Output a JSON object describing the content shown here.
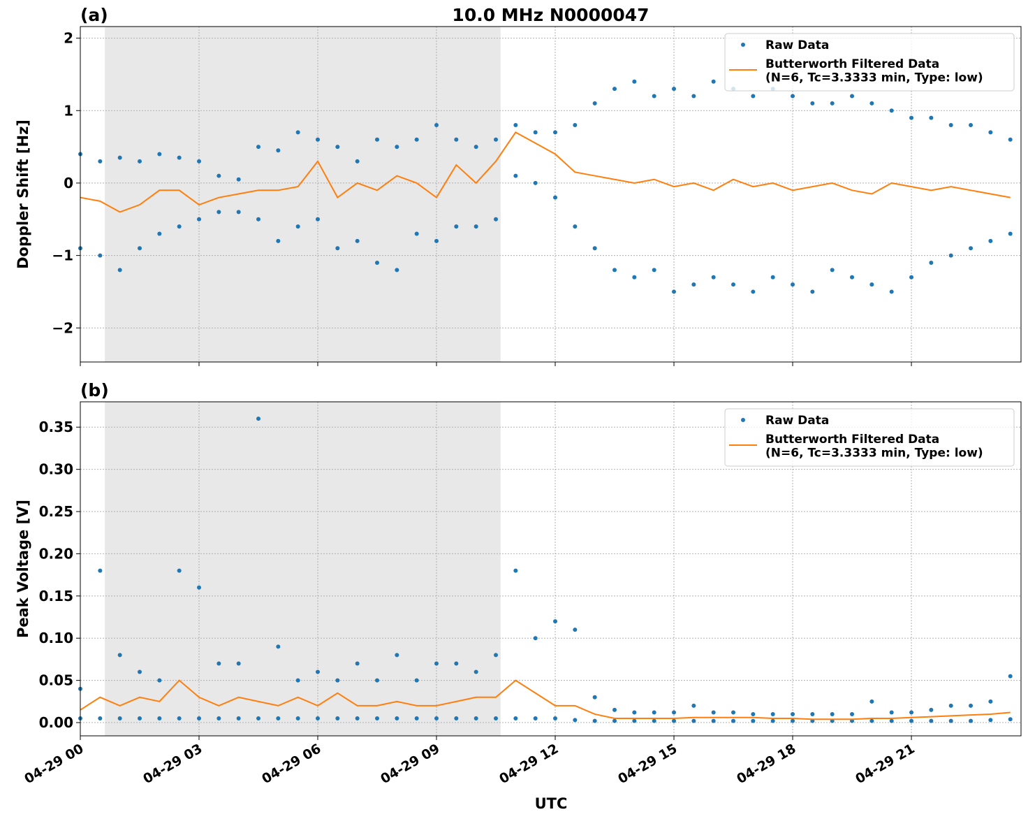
{
  "chart_data": [
    {
      "type": "line",
      "title": "10.0 MHz N0000047",
      "panel_label": "(a)",
      "ylabel": "Doppler Shift [Hz]",
      "xlim": [
        0,
        23.77
      ],
      "ylim": [
        -2.47,
        2.16
      ],
      "xticks": [
        0,
        3,
        6,
        9,
        12,
        15,
        18,
        21
      ],
      "yticks": [
        {
          "value": -2,
          "label": "−2"
        },
        {
          "value": -1,
          "label": "−1"
        },
        0,
        1,
        2
      ],
      "grid": true,
      "legend": "upper right",
      "shade": [
        0.62,
        10.62
      ],
      "series": [
        {
          "name": "Raw Data",
          "color": "#1f77b4",
          "marker": "dot",
          "x": [
            0,
            0,
            0.5,
            0.5,
            1,
            1,
            1.5,
            1.5,
            2,
            2,
            2.5,
            2.5,
            3,
            3,
            3.5,
            3.5,
            4,
            4,
            4.5,
            4.5,
            5,
            5,
            5.5,
            5.5,
            6,
            6,
            6.5,
            6.5,
            7,
            7,
            7.5,
            7.5,
            8,
            8,
            8.5,
            8.5,
            9,
            9,
            9.5,
            9.5,
            10,
            10,
            10.5,
            10.5,
            11,
            11,
            11.5,
            11.5,
            12,
            12,
            12.5,
            12.5,
            13,
            13,
            13.5,
            13.5,
            14,
            14,
            14.5,
            14.5,
            15,
            15,
            15.5,
            15.5,
            16,
            16,
            16.5,
            16.5,
            17,
            17,
            17.5,
            17.5,
            18,
            18,
            18.5,
            18.5,
            19,
            19,
            19.5,
            19.5,
            20,
            20,
            20.5,
            20.5,
            21,
            21,
            21.5,
            21.5,
            22,
            22,
            22.5,
            22.5,
            23,
            23,
            23.5,
            23.5
          ],
          "values": [
            0.4,
            -0.9,
            0.3,
            -1.0,
            0.35,
            -1.2,
            0.3,
            -0.9,
            0.4,
            -0.7,
            0.35,
            -0.6,
            0.3,
            -0.5,
            0.1,
            -0.4,
            0.05,
            -0.4,
            0.5,
            -0.5,
            0.45,
            -0.8,
            0.7,
            -0.6,
            0.6,
            -0.5,
            0.5,
            -0.9,
            0.3,
            -0.8,
            0.6,
            -1.1,
            0.5,
            -1.2,
            0.6,
            -0.7,
            0.8,
            -0.8,
            0.6,
            -0.6,
            0.5,
            -0.6,
            0.6,
            -0.5,
            0.8,
            0.1,
            0.7,
            0.0,
            0.7,
            -0.2,
            0.8,
            -0.6,
            1.1,
            -0.9,
            1.3,
            -1.2,
            1.4,
            -1.3,
            1.2,
            -1.2,
            1.3,
            -1.5,
            1.2,
            -1.4,
            1.4,
            -1.3,
            1.3,
            -1.4,
            1.2,
            -1.5,
            1.3,
            -1.3,
            1.2,
            -1.4,
            1.1,
            -1.5,
            1.1,
            -1.2,
            1.2,
            -1.3,
            1.1,
            -1.4,
            1.0,
            -1.5,
            0.9,
            -1.3,
            0.9,
            -1.1,
            0.8,
            -1.0,
            0.8,
            -0.9,
            0.7,
            -0.8,
            0.6,
            -0.7
          ]
        },
        {
          "name": "Butterworth Filtered Data\n(N=6, Tc=3.3333 min, Type: low)",
          "color": "#ff7f0e",
          "marker": "line",
          "x": [
            0,
            0.5,
            1,
            1.5,
            2,
            2.5,
            3,
            3.5,
            4,
            4.5,
            5,
            5.5,
            6,
            6.5,
            7,
            7.5,
            8,
            8.5,
            9,
            9.5,
            10,
            10.5,
            11,
            11.5,
            12,
            12.5,
            13,
            13.5,
            14,
            14.5,
            15,
            15.5,
            16,
            16.5,
            17,
            17.5,
            18,
            18.5,
            19,
            19.5,
            20,
            20.5,
            21,
            21.5,
            22,
            22.5,
            23,
            23.5
          ],
          "values": [
            -0.2,
            -0.25,
            -0.4,
            -0.3,
            -0.1,
            -0.1,
            -0.3,
            -0.2,
            -0.15,
            -0.1,
            -0.1,
            -0.05,
            0.3,
            -0.2,
            0.0,
            -0.1,
            0.1,
            0.0,
            -0.2,
            0.25,
            0.0,
            0.3,
            0.7,
            0.55,
            0.4,
            0.15,
            0.1,
            0.05,
            0.0,
            0.05,
            -0.05,
            0.0,
            -0.1,
            0.05,
            -0.05,
            0.0,
            -0.1,
            -0.05,
            0.0,
            -0.1,
            -0.15,
            0.0,
            -0.05,
            -0.1,
            -0.05,
            -0.1,
            -0.15,
            -0.2
          ]
        }
      ]
    },
    {
      "type": "line",
      "panel_label": "(b)",
      "ylabel": "Peak Voltage [V]",
      "xlabel": "UTC",
      "xlim": [
        0,
        23.77
      ],
      "ylim": [
        -0.0157,
        0.38
      ],
      "xticks": [
        {
          "value": 0,
          "label": "04-29 00"
        },
        {
          "value": 3,
          "label": "04-29 03"
        },
        {
          "value": 6,
          "label": "04-29 06"
        },
        {
          "value": 9,
          "label": "04-29 09"
        },
        {
          "value": 12,
          "label": "04-29 12"
        },
        {
          "value": 15,
          "label": "04-29 15"
        },
        {
          "value": 18,
          "label": "04-29 18"
        },
        {
          "value": 21,
          "label": "04-29 21"
        }
      ],
      "yticks": [
        {
          "value": 0,
          "label": "0.00"
        },
        0.05,
        {
          "value": 0.1,
          "label": "0.10"
        },
        0.15,
        {
          "value": 0.2,
          "label": "0.20"
        },
        0.25,
        {
          "value": 0.3,
          "label": "0.30"
        },
        0.35
      ],
      "grid": true,
      "legend": "upper right",
      "shade": [
        0.62,
        10.62
      ],
      "series": [
        {
          "name": "Raw Data",
          "color": "#1f77b4",
          "marker": "dot",
          "x": [
            0,
            0,
            0.5,
            0.5,
            1,
            1,
            1.5,
            1.5,
            2,
            2,
            2.5,
            2.5,
            3,
            3,
            3.5,
            3.5,
            4,
            4,
            4.5,
            4.5,
            5,
            5,
            5.5,
            5.5,
            6,
            6,
            6.5,
            6.5,
            7,
            7,
            7.5,
            7.5,
            8,
            8,
            8.5,
            8.5,
            9,
            9,
            9.5,
            9.5,
            10,
            10,
            10.5,
            10.5,
            11,
            11,
            11.5,
            11.5,
            12,
            12,
            12.5,
            12.5,
            13,
            13,
            13.5,
            13.5,
            14,
            14,
            14.5,
            14.5,
            15,
            15,
            15.5,
            15.5,
            16,
            16,
            16.5,
            16.5,
            17,
            17,
            17.5,
            17.5,
            18,
            18,
            18.5,
            18.5,
            19,
            19,
            19.5,
            19.5,
            20,
            20,
            20.5,
            20.5,
            21,
            21,
            21.5,
            21.5,
            22,
            22,
            22.5,
            22.5,
            23,
            23,
            23.5,
            23.5
          ],
          "values": [
            0.04,
            0.005,
            0.18,
            0.005,
            0.08,
            0.005,
            0.06,
            0.005,
            0.05,
            0.005,
            0.18,
            0.005,
            0.16,
            0.005,
            0.07,
            0.005,
            0.07,
            0.005,
            0.36,
            0.005,
            0.09,
            0.005,
            0.05,
            0.005,
            0.06,
            0.005,
            0.05,
            0.005,
            0.07,
            0.005,
            0.05,
            0.005,
            0.08,
            0.005,
            0.05,
            0.005,
            0.07,
            0.005,
            0.07,
            0.005,
            0.06,
            0.005,
            0.08,
            0.005,
            0.18,
            0.005,
            0.1,
            0.005,
            0.12,
            0.005,
            0.11,
            0.003,
            0.03,
            0.002,
            0.015,
            0.002,
            0.012,
            0.002,
            0.012,
            0.002,
            0.012,
            0.002,
            0.02,
            0.002,
            0.012,
            0.002,
            0.012,
            0.002,
            0.01,
            0.002,
            0.01,
            0.002,
            0.01,
            0.002,
            0.01,
            0.002,
            0.01,
            0.002,
            0.01,
            0.002,
            0.025,
            0.002,
            0.012,
            0.002,
            0.012,
            0.002,
            0.015,
            0.002,
            0.02,
            0.002,
            0.02,
            0.002,
            0.025,
            0.003,
            0.055,
            0.004
          ]
        },
        {
          "name": "Butterworth Filtered Data\n(N=6, Tc=3.3333 min, Type: low)",
          "color": "#ff7f0e",
          "marker": "line",
          "x": [
            0,
            0.5,
            1,
            1.5,
            2,
            2.5,
            3,
            3.5,
            4,
            4.5,
            5,
            5.5,
            6,
            6.5,
            7,
            7.5,
            8,
            8.5,
            9,
            9.5,
            10,
            10.5,
            11,
            11.5,
            12,
            12.5,
            13,
            13.5,
            14,
            14.5,
            15,
            15.5,
            16,
            16.5,
            17,
            17.5,
            18,
            18.5,
            19,
            19.5,
            20,
            20.5,
            21,
            21.5,
            22,
            22.5,
            23,
            23.5
          ],
          "values": [
            0.015,
            0.03,
            0.02,
            0.03,
            0.025,
            0.05,
            0.03,
            0.02,
            0.03,
            0.025,
            0.02,
            0.03,
            0.02,
            0.035,
            0.02,
            0.02,
            0.025,
            0.02,
            0.02,
            0.025,
            0.03,
            0.03,
            0.05,
            0.035,
            0.02,
            0.02,
            0.01,
            0.005,
            0.005,
            0.005,
            0.005,
            0.006,
            0.006,
            0.006,
            0.006,
            0.005,
            0.005,
            0.004,
            0.004,
            0.004,
            0.005,
            0.005,
            0.006,
            0.007,
            0.008,
            0.009,
            0.01,
            0.012
          ]
        }
      ]
    }
  ]
}
